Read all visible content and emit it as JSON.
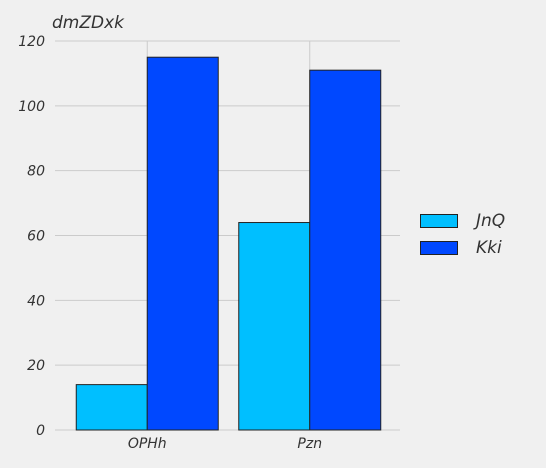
{
  "chart_data": {
    "type": "bar",
    "title": "dmZDxk",
    "categories": [
      "OPHh",
      "Pzn"
    ],
    "series": [
      {
        "name": "JnQ",
        "values": [
          14,
          64
        ],
        "color": "#00bfff"
      },
      {
        "name": "Kki",
        "values": [
          115,
          111
        ],
        "color": "#0048ff"
      }
    ],
    "ylim": [
      0,
      120
    ],
    "yticks": [
      0,
      20,
      40,
      60,
      80,
      100,
      120
    ],
    "grid": true,
    "legend_position": "right"
  }
}
